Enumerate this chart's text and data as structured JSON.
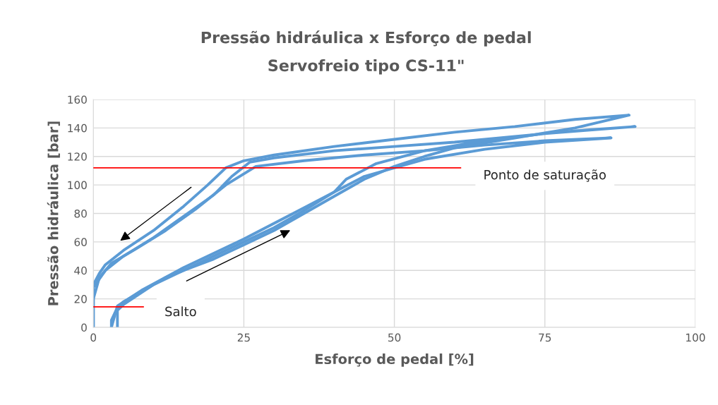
{
  "chart_data": {
    "type": "line",
    "title": "Pressão hidráulica x Esforço de pedal",
    "subtitle": "Servofreio tipo CS-11\"",
    "xlabel": "Esforço de pedal [%]",
    "ylabel": "Pressão hidráulica [bar]",
    "xlim": [
      0,
      100
    ],
    "xticks": [
      0,
      25,
      50,
      75,
      100
    ],
    "ylim": [
      0,
      160
    ],
    "yticks": [
      0,
      20,
      40,
      60,
      80,
      100,
      120,
      140,
      160
    ],
    "grid": true,
    "marker": "none",
    "line_style": "solid",
    "series": [
      {
        "color": "#5b9bd5",
        "x": [
          3,
          3,
          4,
          5,
          8,
          12,
          15,
          20,
          25,
          30,
          35,
          40,
          45,
          50,
          55,
          60,
          70,
          80,
          89,
          80,
          70,
          60,
          50,
          40,
          30,
          25,
          22,
          19,
          15,
          10,
          5,
          2,
          1,
          0,
          0
        ],
        "values": [
          0,
          5,
          14,
          18,
          25,
          35,
          40,
          48,
          58,
          68,
          80,
          92,
          104,
          113,
          120,
          126,
          133,
          140,
          149,
          146,
          141,
          137,
          132,
          127,
          121,
          117,
          112,
          100,
          85,
          68,
          54,
          44,
          38,
          30,
          0
        ]
      },
      {
        "color": "#5b9bd5",
        "x": [
          4,
          4,
          5,
          10,
          15,
          20,
          25,
          30,
          35,
          40,
          42,
          47,
          55,
          65,
          75,
          90,
          80,
          70,
          60,
          50,
          40,
          30,
          26,
          23,
          20,
          15,
          10,
          5,
          2,
          0,
          0
        ],
        "values": [
          0,
          12,
          16,
          30,
          40,
          50,
          60,
          70,
          82,
          95,
          104,
          115,
          124,
          131,
          136,
          141,
          138,
          134,
          130,
          127,
          124,
          119,
          116,
          106,
          93,
          78,
          63,
          50,
          40,
          28,
          0
        ]
      },
      {
        "color": "#5b9bd5",
        "x": [
          3,
          4,
          8,
          15,
          25,
          35,
          45,
          55,
          65,
          75,
          86,
          75,
          65,
          55,
          45,
          35,
          27,
          22,
          17,
          12,
          7,
          3,
          1,
          0,
          0
        ],
        "values": [
          0,
          15,
          26,
          42,
          62,
          84,
          106,
          118,
          125,
          130,
          133,
          131,
          128,
          124,
          121,
          117,
          113,
          100,
          83,
          68,
          55,
          45,
          35,
          20,
          0
        ]
      },
      {
        "type": "line",
        "color": "#ff0000",
        "x": [
          0,
          61
        ],
        "values": [
          112,
          112
        ]
      },
      {
        "type": "line",
        "color": "#ff0000",
        "x": [
          0,
          8.3
        ],
        "values": [
          14.4,
          14.4
        ]
      }
    ],
    "annotations": [
      "Ponto de saturação",
      "Salto"
    ]
  }
}
